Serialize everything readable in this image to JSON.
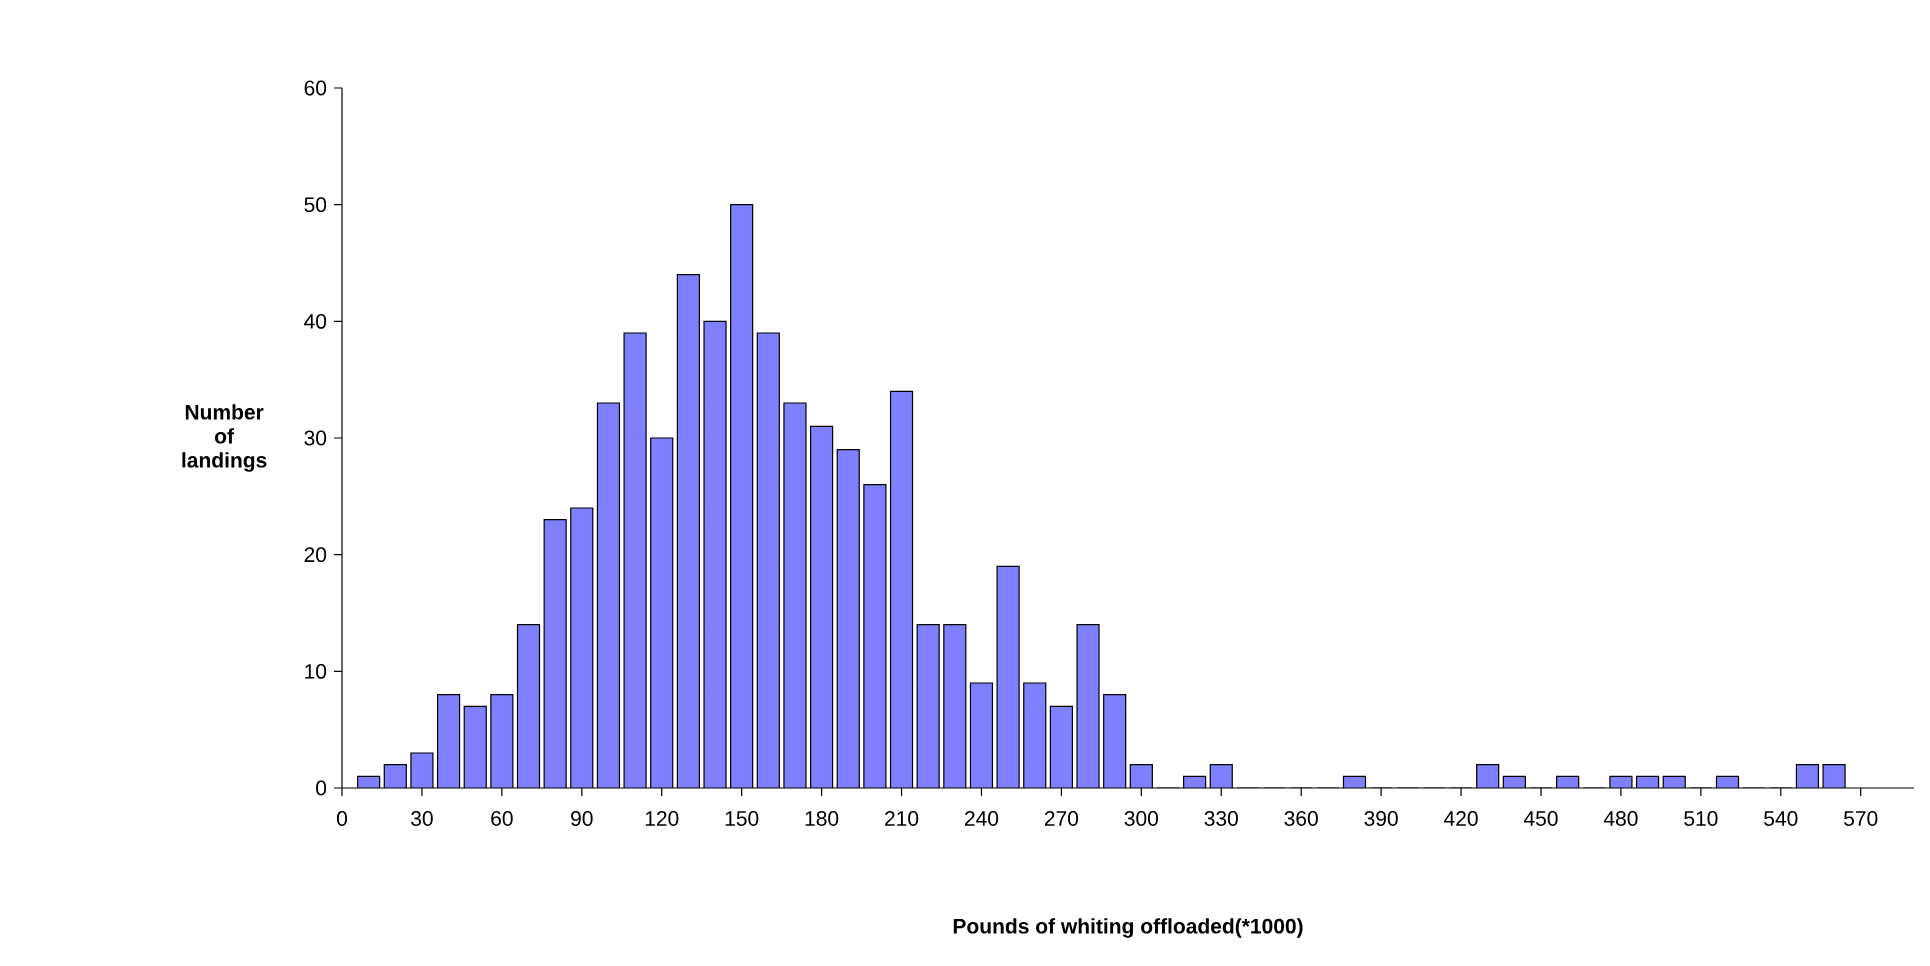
{
  "chart_data": {
    "type": "bar",
    "xlabel": "Pounds of whiting offloaded(*1000)",
    "ylabel": "Number of landings",
    "x": [
      10,
      20,
      30,
      40,
      50,
      60,
      70,
      80,
      90,
      100,
      110,
      120,
      130,
      140,
      150,
      160,
      170,
      180,
      190,
      200,
      210,
      220,
      230,
      240,
      250,
      260,
      270,
      280,
      290,
      300,
      310,
      320,
      330,
      340,
      350,
      360,
      370,
      380,
      390,
      400,
      410,
      420,
      430,
      440,
      450,
      460,
      470,
      480,
      490,
      500,
      510,
      520,
      530,
      540,
      550,
      560
    ],
    "values": [
      1,
      2,
      3,
      8,
      7,
      8,
      14,
      23,
      24,
      33,
      39,
      30,
      44,
      40,
      50,
      39,
      33,
      31,
      29,
      26,
      34,
      14,
      14,
      9,
      19,
      9,
      7,
      14,
      8,
      2,
      0,
      1,
      2,
      0,
      0,
      0,
      0,
      1,
      0,
      0,
      0,
      0,
      2,
      1,
      0,
      1,
      0,
      1,
      1,
      1,
      0,
      1,
      0,
      0,
      2,
      2
    ],
    "color": "#8080ff",
    "xlim": [
      0,
      590
    ],
    "xticks": [
      0,
      30,
      60,
      90,
      120,
      150,
      180,
      210,
      240,
      270,
      300,
      330,
      360,
      390,
      420,
      450,
      480,
      510,
      540,
      570
    ],
    "ylim": [
      0,
      60
    ],
    "yticks": [
      0,
      10,
      20,
      30,
      40,
      50,
      60
    ],
    "grid": false
  }
}
